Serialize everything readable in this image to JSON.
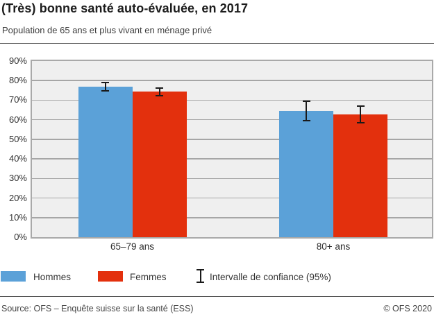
{
  "header": {
    "title": "(Très) bonne santé auto-évaluée, en 2017",
    "subtitle": "Population de 65 ans et plus vivant en ménage privé"
  },
  "chart_data": {
    "type": "bar",
    "categories": [
      "65–79 ans",
      "80+ ans"
    ],
    "series": [
      {
        "name": "Hommes",
        "color": "#5ba1d8",
        "values": [
          76.9,
          64.5
        ],
        "ci_low": [
          74.5,
          59.3
        ],
        "ci_high": [
          79.2,
          69.8
        ]
      },
      {
        "name": "Femmes",
        "color": "#e3300d",
        "values": [
          74.4,
          62.6
        ],
        "ci_low": [
          72.0,
          58.2
        ],
        "ci_high": [
          76.6,
          67.2
        ]
      }
    ],
    "title": "(Très) bonne santé auto-évaluée, en 2017",
    "xlabel": "",
    "ylabel": "",
    "ylim": [
      0,
      90
    ],
    "ytick_step": 10,
    "ytick_suffix": "%",
    "grid": true,
    "plot_background": "#efefef",
    "grid_color": "#a6a6a6",
    "errorbar_color": "#1a1a1a",
    "legend_position": "bottom"
  },
  "legend": {
    "items": [
      {
        "label": "Hommes",
        "color": "#5ba1d8"
      },
      {
        "label": "Femmes",
        "color": "#e3300d"
      }
    ],
    "ci_label": "Intervalle de confiance (95%)"
  },
  "footer": {
    "source": "Source: OFS – Enquête suisse sur la santé (ESS)",
    "copyright": "© OFS 2020"
  }
}
